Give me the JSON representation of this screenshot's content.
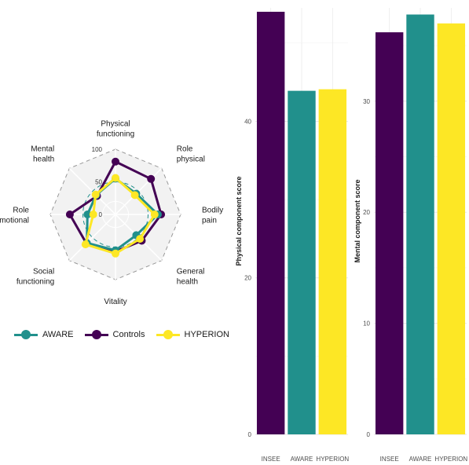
{
  "colors": {
    "AWARE": "#21908c",
    "Controls": "#440154",
    "HYPERION": "#fde725",
    "INSEE": "#440154"
  },
  "legend": [
    {
      "name": "AWARE",
      "color": "#21908c"
    },
    {
      "name": "Controls",
      "color": "#440154"
    },
    {
      "name": "HYPERION",
      "color": "#fde725"
    }
  ],
  "chart_data": [
    {
      "type": "radar",
      "axes": [
        {
          "label": [
            "Physical",
            "functioning"
          ]
        },
        {
          "label": [
            "Role",
            "physical"
          ]
        },
        {
          "label": [
            "Bodily",
            "pain"
          ]
        },
        {
          "label": [
            "General",
            "health"
          ]
        },
        {
          "label": [
            "Vitality"
          ]
        },
        {
          "label": [
            "Social",
            "functioning"
          ]
        },
        {
          "label": [
            "Role",
            "emotional"
          ]
        },
        {
          "label": [
            "Mental",
            "health"
          ]
        }
      ],
      "rlim": [
        0,
        100
      ],
      "ticks": [
        "100",
        "50",
        "0"
      ],
      "series": [
        {
          "name": "AWARE",
          "values": [
            55,
            45,
            65,
            45,
            55,
            62,
            43,
            42
          ]
        },
        {
          "name": "Controls",
          "values": [
            81,
            77,
            70,
            57,
            57,
            63,
            70,
            40
          ]
        },
        {
          "name": "HYPERION",
          "values": [
            56,
            42,
            60,
            53,
            60,
            65,
            34,
            43
          ]
        }
      ]
    },
    {
      "type": "bar",
      "categories": [
        "INSEE",
        "AWARE",
        "HYPERION"
      ],
      "values": [
        54,
        43.9,
        44.1
      ],
      "ylabel": "Physical component score",
      "ylim": [
        0,
        54.5
      ],
      "yticks": [
        0,
        20,
        40
      ]
    },
    {
      "type": "bar",
      "categories": [
        "INSEE",
        "AWARE",
        "HYPERION"
      ],
      "values": [
        36.2,
        37.8,
        37
      ],
      "ylabel": "Mental component score",
      "ylim": [
        0,
        38.4
      ],
      "yticks": [
        0,
        10,
        20,
        30
      ]
    }
  ]
}
